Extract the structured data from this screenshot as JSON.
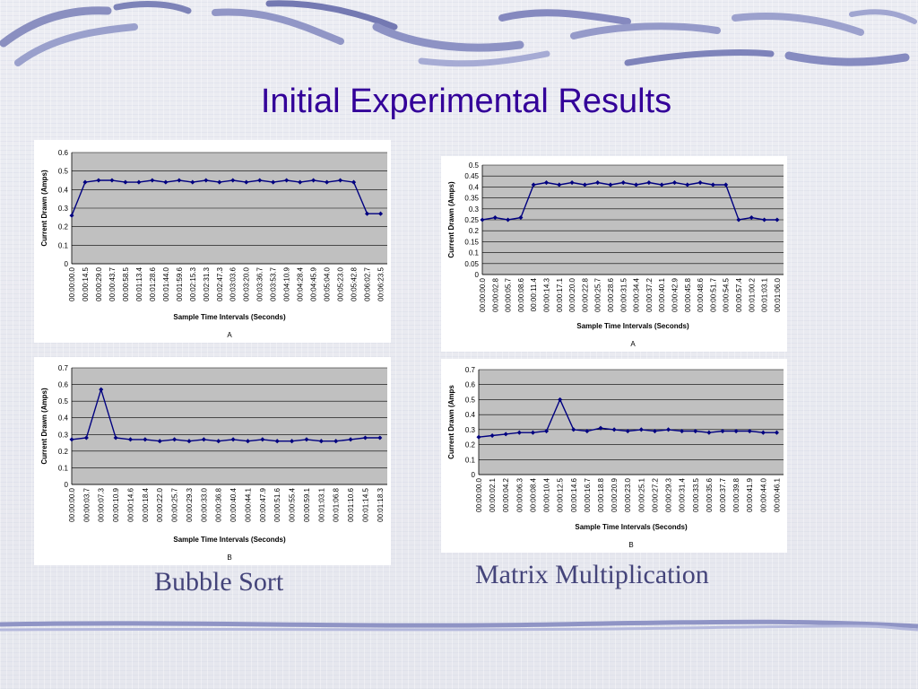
{
  "slide": {
    "title": "Initial Experimental Results",
    "title_color": "#330099",
    "captions": {
      "left": "Bubble Sort",
      "right": "Matrix Multiplication"
    }
  },
  "chart_data": [
    {
      "id": "bubble-a",
      "type": "line",
      "panel_label": "A",
      "ylabel": "Current Drawn (Amps)",
      "xlabel": "Sample Time Intervals (Seconds)",
      "ylim": [
        0,
        0.6
      ],
      "yticks": [
        "0",
        "0.1",
        "0.2",
        "0.3",
        "0.4",
        "0.5",
        "0.6"
      ],
      "grid": true,
      "series_color": "#000080",
      "categories": [
        "00:00:00.0",
        "00:00:14.5",
        "00:00:29.0",
        "00:00:43.7",
        "00:00:58.5",
        "00:01:13.4",
        "00:01:28.6",
        "00:01:44.0",
        "00:01:59.6",
        "00:02:15.3",
        "00:02:31.3",
        "00:02:47.3",
        "00:03:03.6",
        "00:03:20.0",
        "00:03:36.7",
        "00:03:53.7",
        "00:04:10.9",
        "00:04:28.4",
        "00:04:45.9",
        "00:05:04.0",
        "00:05:23.0",
        "00:05:42.8",
        "00:06:02.7",
        "00:06:23.5"
      ],
      "values": [
        0.26,
        0.44,
        0.45,
        0.45,
        0.44,
        0.44,
        0.45,
        0.44,
        0.45,
        0.44,
        0.45,
        0.44,
        0.45,
        0.44,
        0.45,
        0.44,
        0.45,
        0.44,
        0.45,
        0.44,
        0.45,
        0.44,
        0.27,
        0.27
      ]
    },
    {
      "id": "matrix-a",
      "type": "line",
      "panel_label": "A",
      "ylabel": "Current Drawn (Amps)",
      "xlabel": "Sample Time Intervals (Seconds)",
      "ylim": [
        0,
        0.5
      ],
      "yticks": [
        "0",
        "0.05",
        "0.1",
        "0.15",
        "0.2",
        "0.25",
        "0.3",
        "0.35",
        "0.4",
        "0.45",
        "0.5"
      ],
      "grid": true,
      "series_color": "#000080",
      "categories": [
        "00:00:00.0",
        "00:00:02.8",
        "00:00:05.7",
        "00:00:08.6",
        "00:00:11.4",
        "00:00:14.3",
        "00:00:17.1",
        "00:00:20.0",
        "00:00:22.8",
        "00:00:25.7",
        "00:00:28.6",
        "00:00:31.5",
        "00:00:34.4",
        "00:00:37.2",
        "00:00:40.1",
        "00:00:42.9",
        "00:00:45.8",
        "00:00:48.6",
        "00:00:51.7",
        "00:00:54.5",
        "00:00:57.4",
        "00:01:00.2",
        "00:01:03.1",
        "00:01:06.0"
      ],
      "values": [
        0.25,
        0.26,
        0.25,
        0.26,
        0.41,
        0.42,
        0.41,
        0.42,
        0.41,
        0.42,
        0.41,
        0.42,
        0.41,
        0.42,
        0.41,
        0.42,
        0.41,
        0.42,
        0.41,
        0.41,
        0.25,
        0.26,
        0.25,
        0.25
      ]
    },
    {
      "id": "bubble-b",
      "type": "line",
      "panel_label": "B",
      "ylabel": "Current Drawn (Amps)",
      "xlabel": "Sample Time Intervals (Seconds)",
      "ylim": [
        0,
        0.7
      ],
      "yticks": [
        "0",
        "0.1",
        "0.2",
        "0.3",
        "0.4",
        "0.5",
        "0.6",
        "0.7"
      ],
      "grid": true,
      "series_color": "#000080",
      "categories": [
        "00:00:00.0",
        "00:00:03.7",
        "00:00:07.3",
        "00:00:10.9",
        "00:00:14.6",
        "00:00:18.4",
        "00:00:22.0",
        "00:00:25.7",
        "00:00:29.3",
        "00:00:33.0",
        "00:00:36.8",
        "00:00:40.4",
        "00:00:44.1",
        "00:00:47.9",
        "00:00:51.6",
        "00:00:55.4",
        "00:00:59.1",
        "00:01:03.1",
        "00:01:06.8",
        "00:01:10.6",
        "00:01:14.5",
        "00:01:18.3"
      ],
      "values": [
        0.27,
        0.28,
        0.57,
        0.28,
        0.27,
        0.27,
        0.26,
        0.27,
        0.26,
        0.27,
        0.26,
        0.27,
        0.26,
        0.27,
        0.26,
        0.26,
        0.27,
        0.26,
        0.26,
        0.27,
        0.28,
        0.28
      ]
    },
    {
      "id": "matrix-b",
      "type": "line",
      "panel_label": "B",
      "ylabel": "Current Drawn (Amps",
      "xlabel": "Sample Time Intervals (Seconds)",
      "ylim": [
        0,
        0.7
      ],
      "yticks": [
        "0",
        "0.1",
        "0.2",
        "0.3",
        "0.4",
        "0.5",
        "0.6",
        "0.7"
      ],
      "grid": true,
      "series_color": "#000080",
      "categories": [
        "00:00:00.0",
        "00:00:02.1",
        "00:00:04.2",
        "00:00:06.3",
        "00:00:08.4",
        "00:00:10.4",
        "00:00:12.5",
        "00:00:14.6",
        "00:00:16.7",
        "00:00:18.8",
        "00:00:20.9",
        "00:00:23.0",
        "00:00:25.1",
        "00:00:27.2",
        "00:00:29.3",
        "00:00:31.4",
        "00:00:33.5",
        "00:00:35.6",
        "00:00:37.7",
        "00:00:39.8",
        "00:00:41.9",
        "00:00:44.0",
        "00:00:46.1"
      ],
      "values": [
        0.25,
        0.26,
        0.27,
        0.28,
        0.28,
        0.29,
        0.5,
        0.3,
        0.29,
        0.31,
        0.3,
        0.29,
        0.3,
        0.29,
        0.3,
        0.29,
        0.29,
        0.28,
        0.29,
        0.29,
        0.29,
        0.28,
        0.28
      ]
    }
  ]
}
